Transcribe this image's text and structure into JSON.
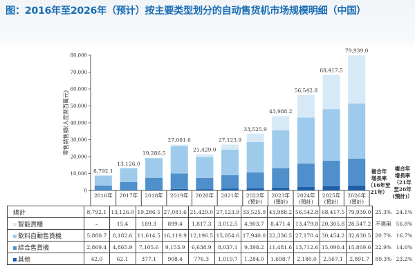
{
  "title": "图：2016年至2026年（预计）按主要类型划分的自动售货机市场规模明细（中国）",
  "chart_data": {
    "type": "bar",
    "stacked": true,
    "ylabel": "零售銷售額(人民幣百萬元)",
    "ylim": [
      0,
      80000
    ],
    "yticks": [
      "0",
      "10,000",
      "20,000",
      "30,000",
      "40,000",
      "50,000",
      "60,000",
      "70,000",
      "80,000"
    ],
    "grid": false,
    "categories": [
      "2016年",
      "2017年",
      "2018年",
      "2019年",
      "2020年",
      "2021年",
      "2022年\n(預計)",
      "2023年\n(預計)",
      "2024年\n(預計)",
      "2025年\n(預計)",
      "2026年\n(預計)"
    ],
    "total_name": "總計",
    "totals": [
      8792.1,
      13126.0,
      19286.5,
      27081.6,
      21429.0,
      27123.9,
      33525.9,
      43988.2,
      56542.8,
      68417.5,
      79939.0
    ],
    "total_labels": [
      "8,792.1",
      "13,126.0",
      "19,286.5",
      "27,081.6",
      "21,429.0",
      "27,123.9",
      "33,525.9",
      "43,988.2",
      "56,542.8",
      "68,417.5",
      "79,939.0"
    ],
    "series": [
      {
        "name": "其他",
        "color": "#1f5fa8",
        "values": [
          42.0,
          62.1,
          377.1,
          908.4,
          776.3,
          1019.7,
          1284.0,
          1698.7,
          2180.0,
          2567.1,
          2891.7
        ],
        "labels": [
          "42.0",
          "62.1",
          "377.1",
          "908.4",
          "776.3",
          "1,019.7",
          "1,284.0",
          "1,698.7",
          "2,180.0",
          "2,567.1",
          "2,891.7"
        ],
        "cagr_16_21": "89.3%",
        "cagr_21_26": "23.2%"
      },
      {
        "name": "綜合售貨機",
        "color": "#4f8fcb",
        "values": [
          2869.4,
          4865.9,
          7105.6,
          9153.9,
          6638.9,
          8037.1,
          9398.2,
          11481.6,
          13712.6,
          15090.4,
          15869.6
        ],
        "labels": [
          "2,869.4",
          "4,865.9",
          "7,105.6",
          "9,153.9",
          "6,638.9",
          "8,037.1",
          "9,398.2",
          "11,481.6",
          "13,712.6",
          "15,090.4",
          "15,869.6"
        ],
        "cagr_16_21": "22.9%",
        "cagr_21_26": "14.6%"
      },
      {
        "name": "飲料自動售貨機",
        "color": "#9ecbeb",
        "values": [
          5880.7,
          8182.6,
          11614.5,
          16119.9,
          12196.5,
          15054.6,
          17940.0,
          22336.5,
          27170.4,
          30454.2,
          32630.5
        ],
        "labels": [
          "5,880.7",
          "8,182.6",
          "11,614.5",
          "16,119.9",
          "12,196.5",
          "15,054.6",
          "17,940.0",
          "22,336.5",
          "27,170.4",
          "30,454.2",
          "32,630.5"
        ],
        "cagr_16_21": "20.7%",
        "cagr_21_26": "16.7%"
      },
      {
        "name": "智能貨櫃",
        "color": "#d6e9f6",
        "values": [
          0,
          15.4,
          189.3,
          899.4,
          1817.3,
          3012.5,
          4903.7,
          8471.4,
          13479.8,
          20305.8,
          28547.2
        ],
        "labels": [
          "–",
          "15.4",
          "189.3",
          "899.4",
          "1,817.3",
          "3,012.5",
          "4,903.7",
          "8,471.4",
          "13,479.8",
          "20,305.8",
          "28,547.2"
        ],
        "cagr_16_21": "不適用",
        "cagr_21_26": "56.8%"
      }
    ],
    "total_cagr_16_21": "25.3%",
    "total_cagr_21_26": "24.1%",
    "cagr_header_1": "複合年\n增長率\n（16年至\n21年）",
    "cagr_header_2": "複合年\n增長率\n（21年\n至26年\n(預計)）"
  }
}
